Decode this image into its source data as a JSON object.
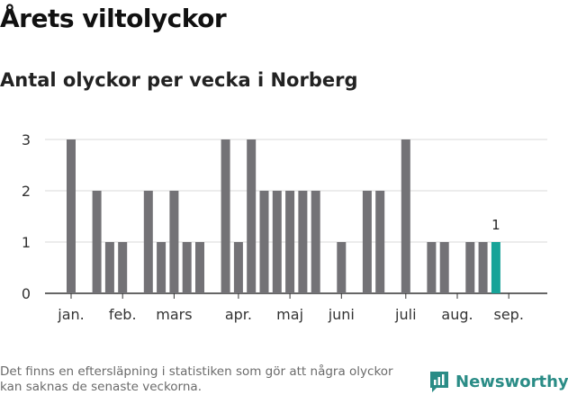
{
  "title": "Årets viltolyckor",
  "subtitle": "Antal olyckor per vecka i Norberg",
  "footnote": "Det finns en eftersläpning i statistiken som gör att några olyckor kan saknas de senaste veckorna.",
  "brand": {
    "name": "Newsworthy",
    "icon": "newsworthy-logo-icon",
    "color": "#2a8c86"
  },
  "colors": {
    "bar": "#737276",
    "highlight": "#17a398",
    "grid": "#d9d9d9",
    "axis": "#333333"
  },
  "chart_data": {
    "type": "bar",
    "xlabel": "",
    "ylabel": "",
    "ylim": [
      0,
      3
    ],
    "yticks": [
      0,
      1,
      2,
      3
    ],
    "grid": true,
    "x": [
      1,
      3,
      4,
      5,
      7,
      8,
      9,
      10,
      11,
      13,
      14,
      15,
      16,
      17,
      18,
      19,
      20,
      22,
      24,
      25,
      27,
      29,
      30,
      32,
      33,
      34
    ],
    "values": [
      3,
      2,
      1,
      1,
      2,
      1,
      2,
      1,
      1,
      3,
      1,
      3,
      2,
      2,
      2,
      2,
      2,
      1,
      2,
      2,
      3,
      1,
      1,
      1,
      1,
      1
    ],
    "month_ticks": [
      {
        "label": "jan.",
        "week": 1
      },
      {
        "label": "feb.",
        "week": 5
      },
      {
        "label": "mars",
        "week": 9
      },
      {
        "label": "apr.",
        "week": 14
      },
      {
        "label": "maj",
        "week": 18
      },
      {
        "label": "juni",
        "week": 22
      },
      {
        "label": "juli",
        "week": 27
      },
      {
        "label": "aug.",
        "week": 31
      },
      {
        "label": "sep.",
        "week": 35
      }
    ],
    "highlight_last": true,
    "last_value_label": "1"
  }
}
